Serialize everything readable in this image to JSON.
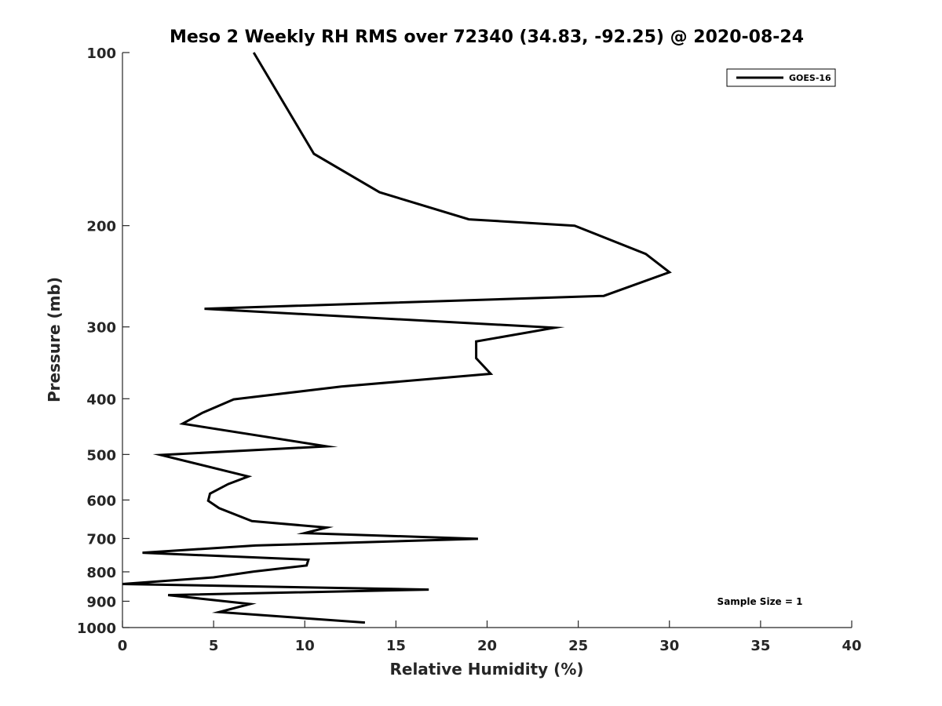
{
  "chart_data": {
    "type": "line",
    "title": "Meso 2 Weekly RH RMS over 72340 (34.83, -92.25) @ 2020-08-24",
    "xlabel": "Relative Humidity (%)",
    "ylabel": "Pressure (mb)",
    "xlim": [
      0,
      40
    ],
    "ylim": [
      100,
      1000
    ],
    "y_scale": "log",
    "y_reversed": true,
    "grid": false,
    "legend_position": "top-right",
    "x_ticks": [
      0,
      5,
      10,
      15,
      20,
      25,
      30,
      35,
      40
    ],
    "x_tick_labels": [
      "0",
      "5",
      "10",
      "15",
      "20",
      "25",
      "30",
      "35",
      "40"
    ],
    "y_ticks": [
      100,
      200,
      300,
      400,
      500,
      600,
      700,
      800,
      900,
      1000
    ],
    "y_tick_labels": [
      "100",
      "200",
      "300",
      "400",
      "500",
      "600",
      "700",
      "800",
      "900",
      "1000"
    ],
    "annotation": "Sample Size = 1",
    "series": [
      {
        "name": "GOES-16",
        "color": "#000000",
        "points": [
          [
            7.2,
            100
          ],
          [
            10.5,
            150
          ],
          [
            14.1,
            175
          ],
          [
            19.0,
            195
          ],
          [
            24.8,
            200
          ],
          [
            28.7,
            224
          ],
          [
            30.0,
            241
          ],
          [
            26.4,
            265
          ],
          [
            4.5,
            279
          ],
          [
            23.7,
            301
          ],
          [
            19.4,
            318
          ],
          [
            19.4,
            340
          ],
          [
            20.2,
            362
          ],
          [
            12.0,
            381
          ],
          [
            6.1,
            401
          ],
          [
            4.4,
            423
          ],
          [
            3.3,
            442
          ],
          [
            11.2,
            484
          ],
          [
            2.1,
            501
          ],
          [
            6.9,
            546
          ],
          [
            5.8,
            563
          ],
          [
            4.8,
            585
          ],
          [
            4.7,
            602
          ],
          [
            5.3,
            620
          ],
          [
            7.1,
            653
          ],
          [
            11.2,
            670
          ],
          [
            10.0,
            685
          ],
          [
            19.5,
            701
          ],
          [
            7.3,
            720
          ],
          [
            1.1,
            741
          ],
          [
            10.2,
            762
          ],
          [
            10.1,
            780
          ],
          [
            7.2,
            799
          ],
          [
            5.0,
            818
          ],
          [
            0.0,
            840
          ],
          [
            16.8,
            859
          ],
          [
            2.5,
            878
          ],
          [
            7.0,
            910
          ],
          [
            5.3,
            940
          ],
          [
            13.3,
            980
          ]
        ]
      }
    ]
  }
}
